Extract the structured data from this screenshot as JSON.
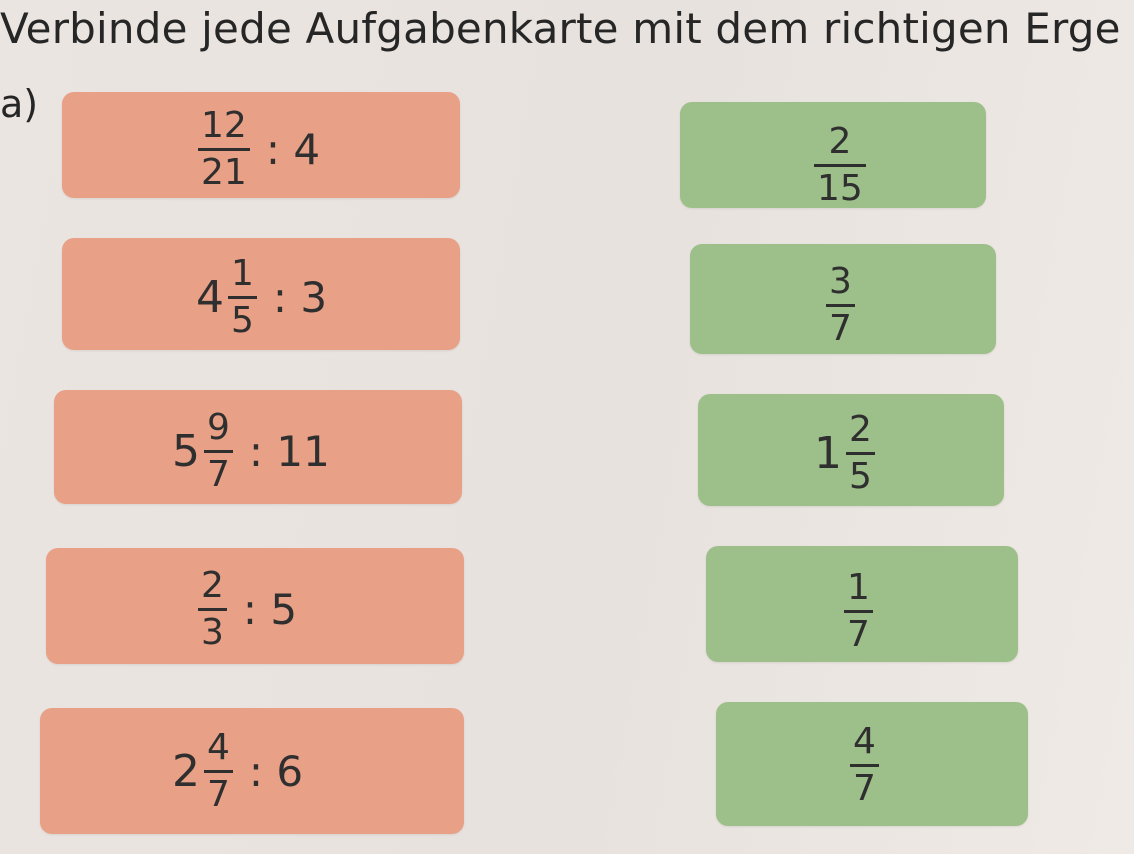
{
  "title": "Verbinde jede Aufgabenkarte mit dem richtigen Erge",
  "section_label": "a)",
  "tasks": [
    {
      "whole": "",
      "num": "12",
      "den": "21",
      "op": ": 4"
    },
    {
      "whole": "4",
      "num": "1",
      "den": "5",
      "op": ": 3"
    },
    {
      "whole": "5",
      "num": "9",
      "den": "7",
      "op": ": 11"
    },
    {
      "whole": "",
      "num": "2",
      "den": "3",
      "op": ": 5"
    },
    {
      "whole": "2",
      "num": "4",
      "den": "7",
      "op": ": 6"
    }
  ],
  "results": [
    {
      "whole": "",
      "num": "2",
      "den": "15"
    },
    {
      "whole": "",
      "num": "3",
      "den": "7"
    },
    {
      "whole": "1",
      "num": "2",
      "den": "5"
    },
    {
      "whole": "",
      "num": "1",
      "den": "7"
    },
    {
      "whole": "",
      "num": "4",
      "den": "7"
    }
  ],
  "colors": {
    "task_card": "#e8a086",
    "result_card": "#9dbf8a"
  }
}
